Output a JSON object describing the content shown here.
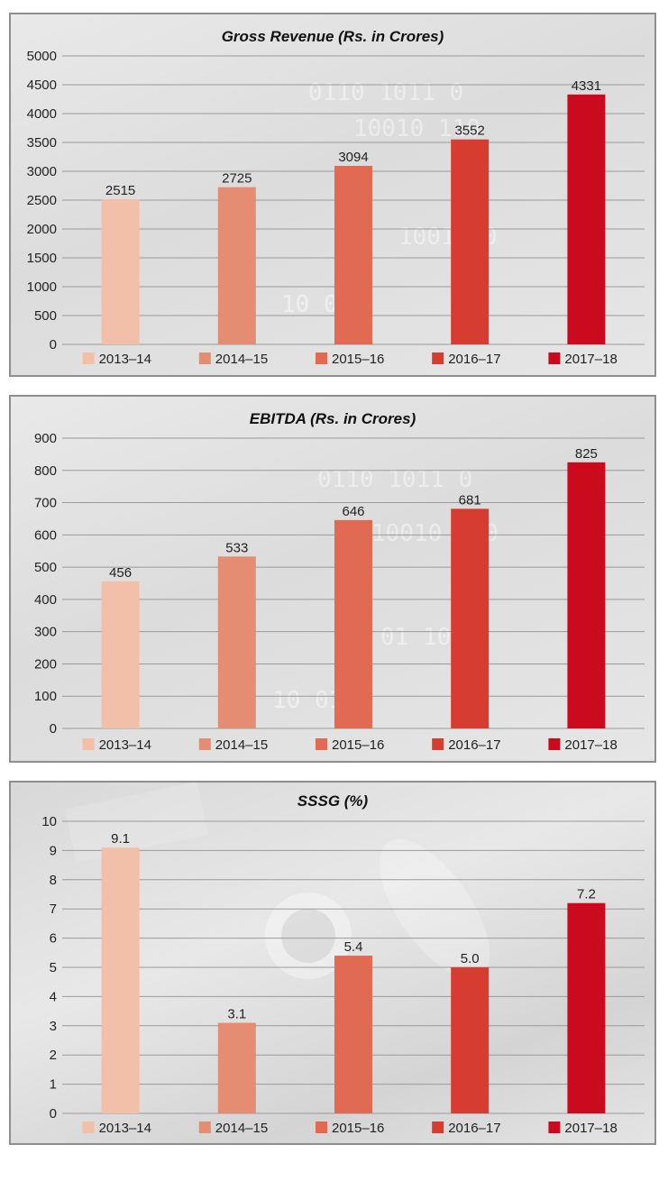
{
  "colors": [
    "#f2bfa8",
    "#e58d72",
    "#e06a52",
    "#d63d30",
    "#cc0a1e"
  ],
  "chart_data": [
    {
      "type": "bar",
      "title": "Gross Revenue (Rs. in Crores)",
      "categories": [
        "2013–14",
        "2014–15",
        "2015–16",
        "2016–17",
        "2017–18"
      ],
      "values": [
        2515,
        2725,
        3094,
        3552,
        4331
      ],
      "value_labels": [
        "2515",
        "2725",
        "3094",
        "3552",
        "4331"
      ],
      "ylim": [
        0,
        5000
      ],
      "yticks": [
        0,
        500,
        1000,
        1500,
        2000,
        2500,
        3000,
        3500,
        4000,
        4500,
        5000
      ],
      "grid": true,
      "legend": "bottom",
      "xlabel": "",
      "ylabel": ""
    },
    {
      "type": "bar",
      "title": "EBITDA (Rs. in Crores)",
      "categories": [
        "2013–14",
        "2014–15",
        "2015–16",
        "2016–17",
        "2017–18"
      ],
      "values": [
        456,
        533,
        646,
        681,
        825
      ],
      "value_labels": [
        "456",
        "533",
        "646",
        "681",
        "825"
      ],
      "ylim": [
        0,
        900
      ],
      "yticks": [
        0,
        100,
        200,
        300,
        400,
        500,
        600,
        700,
        800,
        900
      ],
      "grid": true,
      "legend": "bottom",
      "xlabel": "",
      "ylabel": ""
    },
    {
      "type": "bar",
      "title": "SSSG (%)",
      "categories": [
        "2013–14",
        "2014–15",
        "2015–16",
        "2016–17",
        "2017–18"
      ],
      "values": [
        9.1,
        3.1,
        5.4,
        5.0,
        7.2
      ],
      "value_labels": [
        "9.1",
        "3.1",
        "5.4",
        "5.0",
        "7.2"
      ],
      "ylim": [
        0,
        10
      ],
      "yticks": [
        0,
        1,
        2,
        3,
        4,
        5,
        6,
        7,
        8,
        9,
        10
      ],
      "grid": true,
      "legend": "bottom",
      "xlabel": "",
      "ylabel": ""
    }
  ]
}
